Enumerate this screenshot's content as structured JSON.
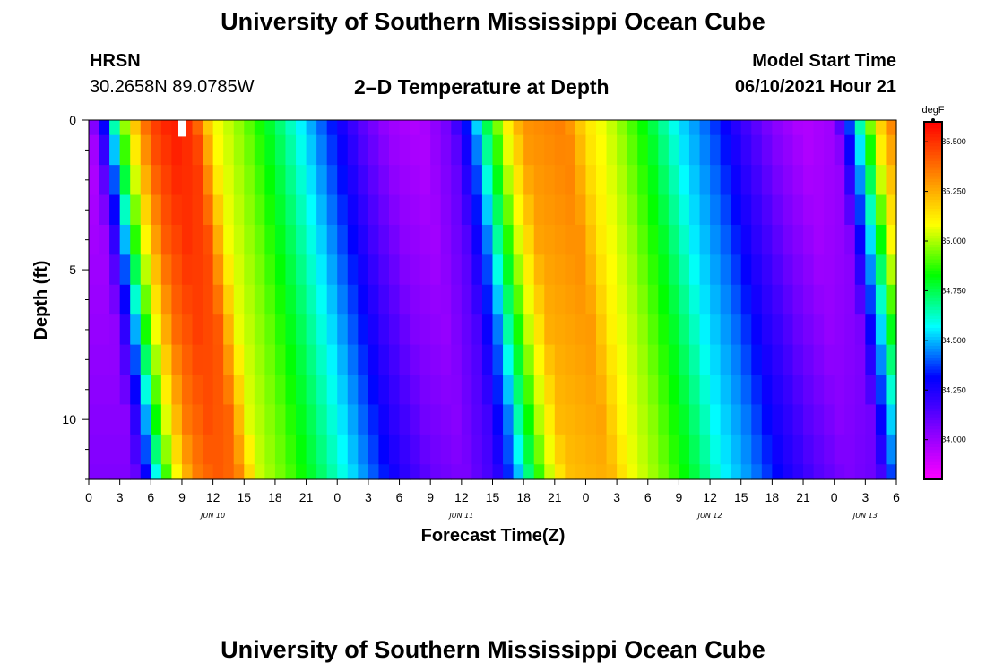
{
  "page": {
    "title_top": "University of Southern Mississippi Ocean Cube",
    "title_bottom": "University of Southern Mississippi Ocean Cube",
    "station": "HRSN",
    "coords": "30.2658N  89.0785W",
    "model_start_label": "Model Start Time",
    "model_start_value": "06/10/2021 Hour 21",
    "chart_title": "2–D Temperature at Depth"
  },
  "chart_data": {
    "type": "heatmap",
    "title": "2–D Temperature at Depth",
    "xlabel": "Forecast Time(Z)",
    "ylabel": "Depth (ft)",
    "x_range_hours_from_jun10_00z": [
      0,
      78
    ],
    "x_time_step_hours": 1,
    "y_range_ft": [
      0,
      12
    ],
    "depth_levels_ft": [
      0,
      1,
      2,
      3,
      4,
      5,
      6,
      7,
      8,
      9,
      10,
      11,
      12
    ],
    "x_ticks": [
      "0",
      "3",
      "6",
      "9",
      "12",
      "15",
      "18",
      "21",
      "0",
      "3",
      "6",
      "9",
      "12",
      "15",
      "18",
      "21",
      "0",
      "3",
      "6",
      "9",
      "12",
      "15",
      "18",
      "21",
      "0",
      "3",
      "6"
    ],
    "date_labels": [
      {
        "label": "JUN 10",
        "hour": 12
      },
      {
        "label": "JUN 11",
        "hour": 36
      },
      {
        "label": "JUN 12",
        "hour": 60
      },
      {
        "label": "JUN 13",
        "hour": 75
      }
    ],
    "y_ticks": [
      "0",
      "5",
      "10"
    ],
    "y_tick_values": [
      0,
      5,
      10
    ],
    "colorbar": {
      "unit": "degF",
      "min": 83.8,
      "max": 85.6,
      "labels": [
        "85.500",
        "85.250",
        "85.000",
        "84.750",
        "84.500",
        "84.250",
        "84.000"
      ],
      "label_values": [
        85.5,
        85.25,
        85.0,
        84.75,
        84.5,
        84.25,
        84.0
      ],
      "colors": [
        "#ff00ff",
        "#bf00ff",
        "#8000ff",
        "#3a00ff",
        "#0000ff",
        "#0080ff",
        "#00ffff",
        "#00ff80",
        "#00ff00",
        "#80ff00",
        "#ffff00",
        "#ffc000",
        "#ff8000",
        "#ff4000",
        "#ff0000"
      ]
    },
    "temperature_field_degF": {
      "description": "Surface temperature by forecast hour (0-78); deeper levels lag surface by ~0.35 h/ft and are damped slightly with depth",
      "surface_keyframes": [
        {
          "hour": 0,
          "temp": 83.95
        },
        {
          "hour": 1,
          "temp": 84.15
        },
        {
          "hour": 2,
          "temp": 84.45
        },
        {
          "hour": 3,
          "temp": 84.85
        },
        {
          "hour": 4,
          "temp": 85.1
        },
        {
          "hour": 5,
          "temp": 85.3
        },
        {
          "hour": 6,
          "temp": 85.45
        },
        {
          "hour": 8,
          "temp": 85.55
        },
        {
          "hour": 10,
          "temp": 85.5
        },
        {
          "hour": 11,
          "temp": 85.3
        },
        {
          "hour": 12,
          "temp": 85.1
        },
        {
          "hour": 15,
          "temp": 84.95
        },
        {
          "hour": 18,
          "temp": 84.75
        },
        {
          "hour": 20,
          "temp": 84.6
        },
        {
          "hour": 22,
          "temp": 84.45
        },
        {
          "hour": 24,
          "temp": 84.3
        },
        {
          "hour": 26,
          "temp": 84.15
        },
        {
          "hour": 29,
          "temp": 84.0
        },
        {
          "hour": 32,
          "temp": 83.95
        },
        {
          "hour": 35,
          "temp": 84.1
        },
        {
          "hour": 37,
          "temp": 84.4
        },
        {
          "hour": 38,
          "temp": 84.65
        },
        {
          "hour": 40,
          "temp": 85.05
        },
        {
          "hour": 42,
          "temp": 85.3
        },
        {
          "hour": 46,
          "temp": 85.35
        },
        {
          "hour": 48,
          "temp": 85.15
        },
        {
          "hour": 51,
          "temp": 85.0
        },
        {
          "hour": 54,
          "temp": 84.8
        },
        {
          "hour": 57,
          "temp": 84.55
        },
        {
          "hour": 60,
          "temp": 84.4
        },
        {
          "hour": 63,
          "temp": 84.2
        },
        {
          "hour": 66,
          "temp": 84.05
        },
        {
          "hour": 69,
          "temp": 83.95
        },
        {
          "hour": 72,
          "temp": 84.0
        },
        {
          "hour": 74,
          "temp": 84.5
        },
        {
          "hour": 76,
          "temp": 85.1
        },
        {
          "hour": 78,
          "temp": 85.4
        }
      ],
      "depth_lag_hours_per_ft": 0.35,
      "depth_damping_per_ft": 0.012
    },
    "marker": {
      "hour": 9,
      "depth_ft": 0.25,
      "color": "#ffffff"
    }
  }
}
